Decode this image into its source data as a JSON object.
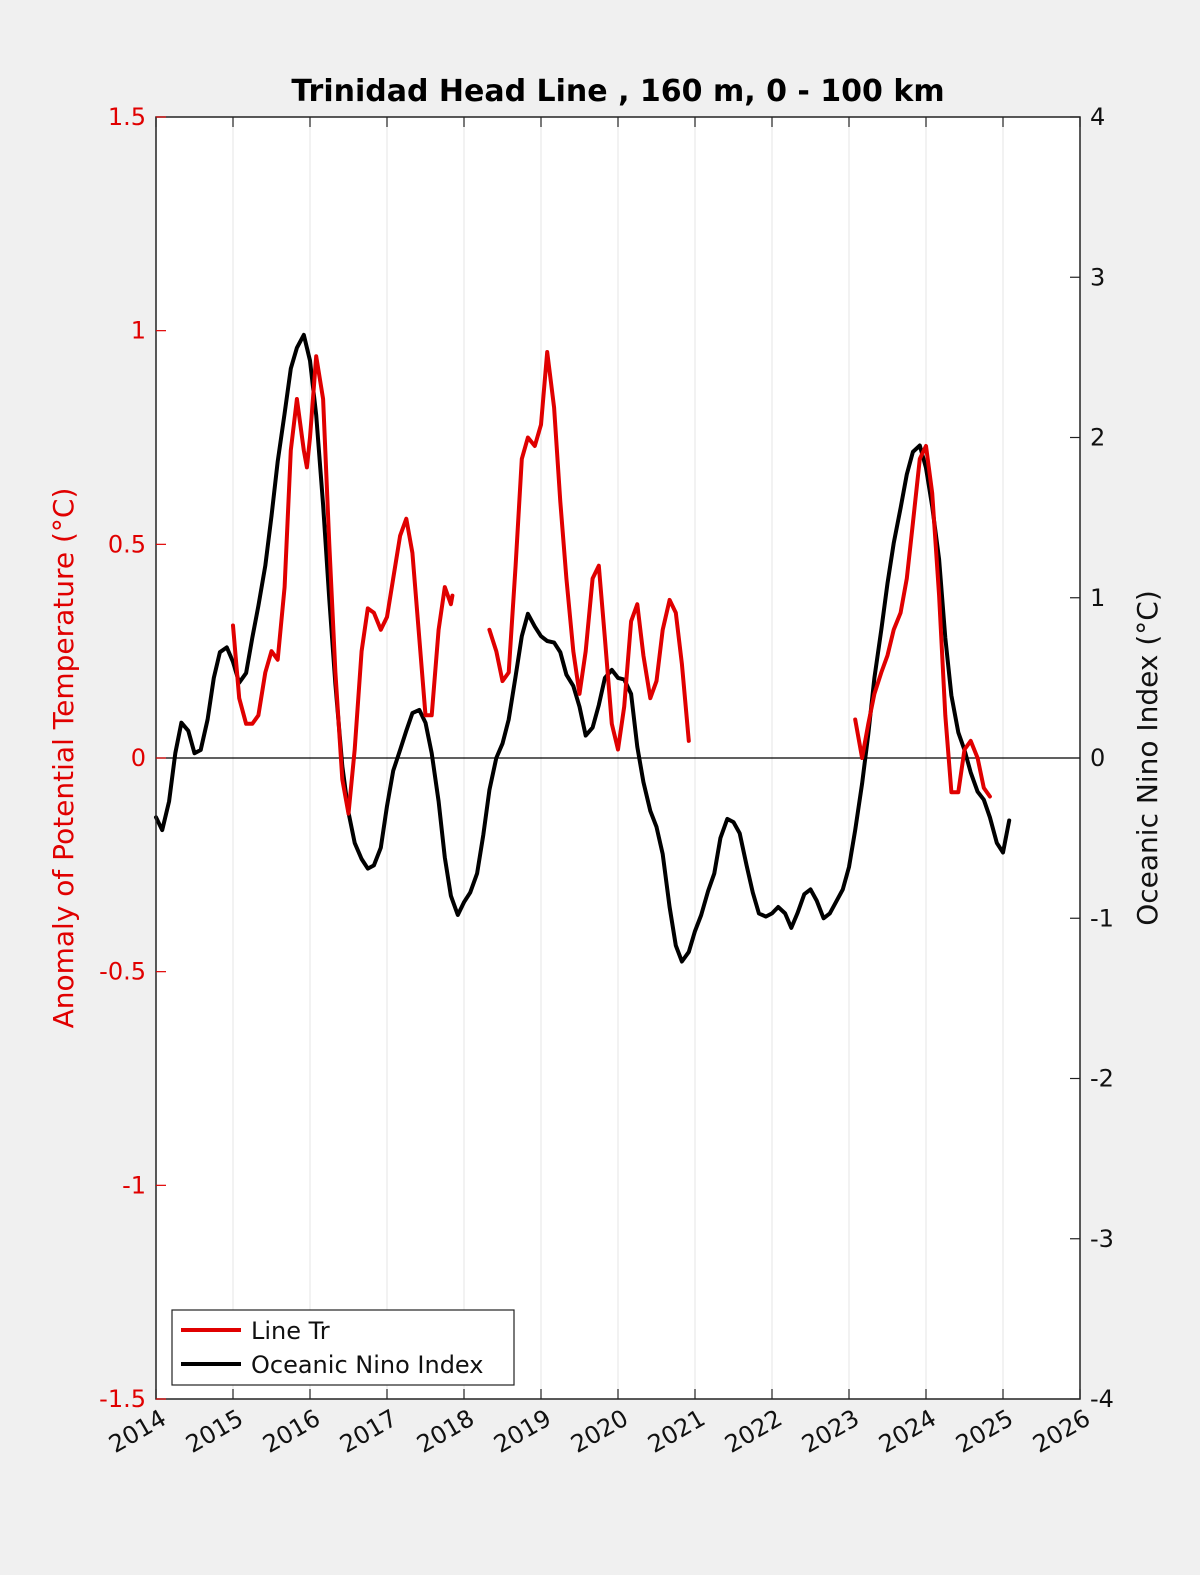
{
  "chart_data": {
    "type": "line",
    "title": "Trinidad Head Line , 160 m, 0 - 100 km",
    "ylabel_left": "Anomaly of Potential Temperature (°C)",
    "ylabel_right": "Oceanic Nino Index (°C)",
    "xlabel": "",
    "xlim": [
      2014,
      2026
    ],
    "ylim_left": [
      -1.5,
      1.5
    ],
    "ylim_right": [
      -4,
      4
    ],
    "x_ticks": [
      "2014",
      "2015",
      "2016",
      "2017",
      "2018",
      "2019",
      "2020",
      "2021",
      "2022",
      "2023",
      "2024",
      "2025",
      "2026"
    ],
    "y_left_ticks": [
      "1.5",
      "1",
      "0.5",
      "0",
      "-0.5",
      "-1",
      "-1.5"
    ],
    "y_right_ticks": [
      "4",
      "3",
      "2",
      "1",
      "0",
      "-1",
      "-2",
      "-3",
      "-4"
    ],
    "grid": "vertical",
    "legend_position": "bottom-left",
    "colors": {
      "line_tr": "#e00000",
      "oni": "#000000",
      "left_axis": "#e00000"
    },
    "series": [
      {
        "name": "Line Tr",
        "axis": "left",
        "color": "#e00000",
        "segments": [
          [
            [
              2015.0,
              0.31
            ],
            [
              2015.08,
              0.14
            ],
            [
              2015.17,
              0.08
            ],
            [
              2015.25,
              0.08
            ],
            [
              2015.33,
              0.1
            ],
            [
              2015.42,
              0.2
            ],
            [
              2015.5,
              0.25
            ],
            [
              2015.58,
              0.23
            ],
            [
              2015.67,
              0.4
            ],
            [
              2015.75,
              0.72
            ],
            [
              2015.83,
              0.84
            ],
            [
              2015.92,
              0.72
            ],
            [
              2015.96,
              0.68
            ],
            [
              2016.0,
              0.75
            ],
            [
              2016.08,
              0.94
            ],
            [
              2016.17,
              0.84
            ],
            [
              2016.25,
              0.5
            ],
            [
              2016.33,
              0.2
            ],
            [
              2016.42,
              -0.05
            ],
            [
              2016.5,
              -0.13
            ],
            [
              2016.58,
              0.02
            ],
            [
              2016.67,
              0.25
            ],
            [
              2016.75,
              0.35
            ],
            [
              2016.83,
              0.34
            ],
            [
              2016.92,
              0.3
            ],
            [
              2017.0,
              0.33
            ],
            [
              2017.08,
              0.42
            ],
            [
              2017.17,
              0.52
            ],
            [
              2017.25,
              0.56
            ],
            [
              2017.33,
              0.48
            ],
            [
              2017.42,
              0.28
            ],
            [
              2017.5,
              0.1
            ],
            [
              2017.58,
              0.1
            ],
            [
              2017.67,
              0.3
            ],
            [
              2017.75,
              0.4
            ],
            [
              2017.83,
              0.36
            ],
            [
              2017.85,
              0.38
            ]
          ],
          [
            [
              2018.33,
              0.3
            ],
            [
              2018.42,
              0.25
            ],
            [
              2018.5,
              0.18
            ],
            [
              2018.58,
              0.2
            ],
            [
              2018.67,
              0.45
            ],
            [
              2018.75,
              0.7
            ],
            [
              2018.83,
              0.75
            ],
            [
              2018.92,
              0.73
            ],
            [
              2019.0,
              0.78
            ],
            [
              2019.08,
              0.95
            ],
            [
              2019.17,
              0.82
            ],
            [
              2019.25,
              0.6
            ],
            [
              2019.33,
              0.42
            ],
            [
              2019.42,
              0.25
            ],
            [
              2019.5,
              0.15
            ],
            [
              2019.58,
              0.25
            ],
            [
              2019.67,
              0.42
            ],
            [
              2019.75,
              0.45
            ],
            [
              2019.83,
              0.28
            ],
            [
              2019.92,
              0.08
            ],
            [
              2020.0,
              0.02
            ],
            [
              2020.08,
              0.12
            ],
            [
              2020.17,
              0.32
            ],
            [
              2020.25,
              0.36
            ],
            [
              2020.33,
              0.24
            ],
            [
              2020.42,
              0.14
            ],
            [
              2020.5,
              0.18
            ],
            [
              2020.58,
              0.3
            ],
            [
              2020.67,
              0.37
            ],
            [
              2020.75,
              0.34
            ],
            [
              2020.83,
              0.22
            ],
            [
              2020.92,
              0.04
            ]
          ],
          [
            [
              2023.08,
              0.09
            ],
            [
              2023.17,
              0.0
            ],
            [
              2023.25,
              0.08
            ],
            [
              2023.33,
              0.15
            ],
            [
              2023.42,
              0.2
            ],
            [
              2023.5,
              0.24
            ],
            [
              2023.58,
              0.3
            ],
            [
              2023.67,
              0.34
            ],
            [
              2023.75,
              0.42
            ],
            [
              2023.83,
              0.55
            ],
            [
              2023.92,
              0.7
            ],
            [
              2024.0,
              0.73
            ],
            [
              2024.08,
              0.62
            ],
            [
              2024.17,
              0.38
            ],
            [
              2024.25,
              0.1
            ],
            [
              2024.33,
              -0.08
            ],
            [
              2024.42,
              -0.08
            ],
            [
              2024.5,
              0.02
            ],
            [
              2024.58,
              0.04
            ],
            [
              2024.67,
              0.0
            ],
            [
              2024.75,
              -0.07
            ],
            [
              2024.83,
              -0.09
            ]
          ]
        ]
      },
      {
        "name": "Oceanic Nino Index",
        "axis": "right",
        "color": "#000000",
        "segments": [
          [
            [
              2014.0,
              -0.37
            ],
            [
              2014.08,
              -0.45
            ],
            [
              2014.17,
              -0.27
            ],
            [
              2014.25,
              0.03
            ],
            [
              2014.33,
              0.22
            ],
            [
              2014.42,
              0.17
            ],
            [
              2014.5,
              0.03
            ],
            [
              2014.58,
              0.05
            ],
            [
              2014.67,
              0.24
            ],
            [
              2014.75,
              0.5
            ],
            [
              2014.83,
              0.66
            ],
            [
              2014.92,
              0.69
            ],
            [
              2015.0,
              0.6
            ],
            [
              2015.08,
              0.47
            ],
            [
              2015.17,
              0.53
            ],
            [
              2015.25,
              0.75
            ],
            [
              2015.33,
              0.95
            ],
            [
              2015.42,
              1.2
            ],
            [
              2015.5,
              1.51
            ],
            [
              2015.58,
              1.85
            ],
            [
              2015.67,
              2.15
            ],
            [
              2015.75,
              2.43
            ],
            [
              2015.83,
              2.56
            ],
            [
              2015.92,
              2.64
            ],
            [
              2016.0,
              2.48
            ],
            [
              2016.08,
              2.14
            ],
            [
              2016.17,
              1.58
            ],
            [
              2016.25,
              0.99
            ],
            [
              2016.33,
              0.46
            ],
            [
              2016.42,
              -0.05
            ],
            [
              2016.5,
              -0.34
            ],
            [
              2016.58,
              -0.53
            ],
            [
              2016.67,
              -0.63
            ],
            [
              2016.75,
              -0.69
            ],
            [
              2016.83,
              -0.67
            ],
            [
              2016.92,
              -0.56
            ],
            [
              2017.0,
              -0.3
            ],
            [
              2017.08,
              -0.08
            ],
            [
              2017.17,
              0.05
            ],
            [
              2017.25,
              0.17
            ],
            [
              2017.33,
              0.28
            ],
            [
              2017.42,
              0.3
            ],
            [
              2017.5,
              0.22
            ],
            [
              2017.58,
              0.03
            ],
            [
              2017.67,
              -0.27
            ],
            [
              2017.75,
              -0.62
            ],
            [
              2017.83,
              -0.86
            ],
            [
              2017.92,
              -0.98
            ],
            [
              2018.0,
              -0.9
            ],
            [
              2018.08,
              -0.84
            ],
            [
              2018.17,
              -0.72
            ],
            [
              2018.25,
              -0.48
            ],
            [
              2018.33,
              -0.2
            ],
            [
              2018.42,
              0.0
            ],
            [
              2018.5,
              0.09
            ],
            [
              2018.58,
              0.24
            ],
            [
              2018.67,
              0.51
            ],
            [
              2018.75,
              0.76
            ],
            [
              2018.83,
              0.9
            ],
            [
              2018.92,
              0.82
            ],
            [
              2019.0,
              0.76
            ],
            [
              2019.08,
              0.73
            ],
            [
              2019.17,
              0.72
            ],
            [
              2019.25,
              0.66
            ],
            [
              2019.33,
              0.52
            ],
            [
              2019.42,
              0.45
            ],
            [
              2019.5,
              0.32
            ],
            [
              2019.58,
              0.14
            ],
            [
              2019.67,
              0.19
            ],
            [
              2019.75,
              0.33
            ],
            [
              2019.83,
              0.5
            ],
            [
              2019.92,
              0.55
            ],
            [
              2020.0,
              0.5
            ],
            [
              2020.08,
              0.49
            ],
            [
              2020.17,
              0.4
            ],
            [
              2020.25,
              0.07
            ],
            [
              2020.33,
              -0.15
            ],
            [
              2020.42,
              -0.33
            ],
            [
              2020.5,
              -0.43
            ],
            [
              2020.58,
              -0.6
            ],
            [
              2020.67,
              -0.93
            ],
            [
              2020.75,
              -1.17
            ],
            [
              2020.83,
              -1.27
            ],
            [
              2020.92,
              -1.21
            ],
            [
              2021.0,
              -1.08
            ],
            [
              2021.08,
              -0.98
            ],
            [
              2021.17,
              -0.83
            ],
            [
              2021.25,
              -0.72
            ],
            [
              2021.33,
              -0.5
            ],
            [
              2021.42,
              -0.38
            ],
            [
              2021.5,
              -0.4
            ],
            [
              2021.58,
              -0.47
            ],
            [
              2021.67,
              -0.67
            ],
            [
              2021.75,
              -0.84
            ],
            [
              2021.83,
              -0.97
            ],
            [
              2021.92,
              -0.99
            ],
            [
              2022.0,
              -0.97
            ],
            [
              2022.08,
              -0.93
            ],
            [
              2022.17,
              -0.97
            ],
            [
              2022.25,
              -1.06
            ],
            [
              2022.33,
              -0.97
            ],
            [
              2022.42,
              -0.85
            ],
            [
              2022.5,
              -0.82
            ],
            [
              2022.58,
              -0.89
            ],
            [
              2022.67,
              -1.0
            ],
            [
              2022.75,
              -0.97
            ],
            [
              2022.83,
              -0.9
            ],
            [
              2022.92,
              -0.82
            ],
            [
              2023.0,
              -0.68
            ],
            [
              2023.08,
              -0.45
            ],
            [
              2023.17,
              -0.16
            ],
            [
              2023.25,
              0.15
            ],
            [
              2023.33,
              0.5
            ],
            [
              2023.42,
              0.8
            ],
            [
              2023.5,
              1.09
            ],
            [
              2023.58,
              1.34
            ],
            [
              2023.67,
              1.56
            ],
            [
              2023.75,
              1.77
            ],
            [
              2023.83,
              1.91
            ],
            [
              2023.92,
              1.95
            ],
            [
              2024.0,
              1.81
            ],
            [
              2024.08,
              1.57
            ],
            [
              2024.17,
              1.24
            ],
            [
              2024.25,
              0.75
            ],
            [
              2024.33,
              0.39
            ],
            [
              2024.42,
              0.16
            ],
            [
              2024.5,
              0.05
            ],
            [
              2024.58,
              -0.09
            ],
            [
              2024.67,
              -0.21
            ],
            [
              2024.75,
              -0.26
            ],
            [
              2024.83,
              -0.37
            ],
            [
              2024.92,
              -0.53
            ],
            [
              2025.0,
              -0.59
            ],
            [
              2025.08,
              -0.39
            ]
          ]
        ]
      }
    ]
  },
  "legend": {
    "items": [
      {
        "label": "Line Tr",
        "color": "#e00000"
      },
      {
        "label": "Oceanic Nino Index",
        "color": "#000000"
      }
    ]
  }
}
